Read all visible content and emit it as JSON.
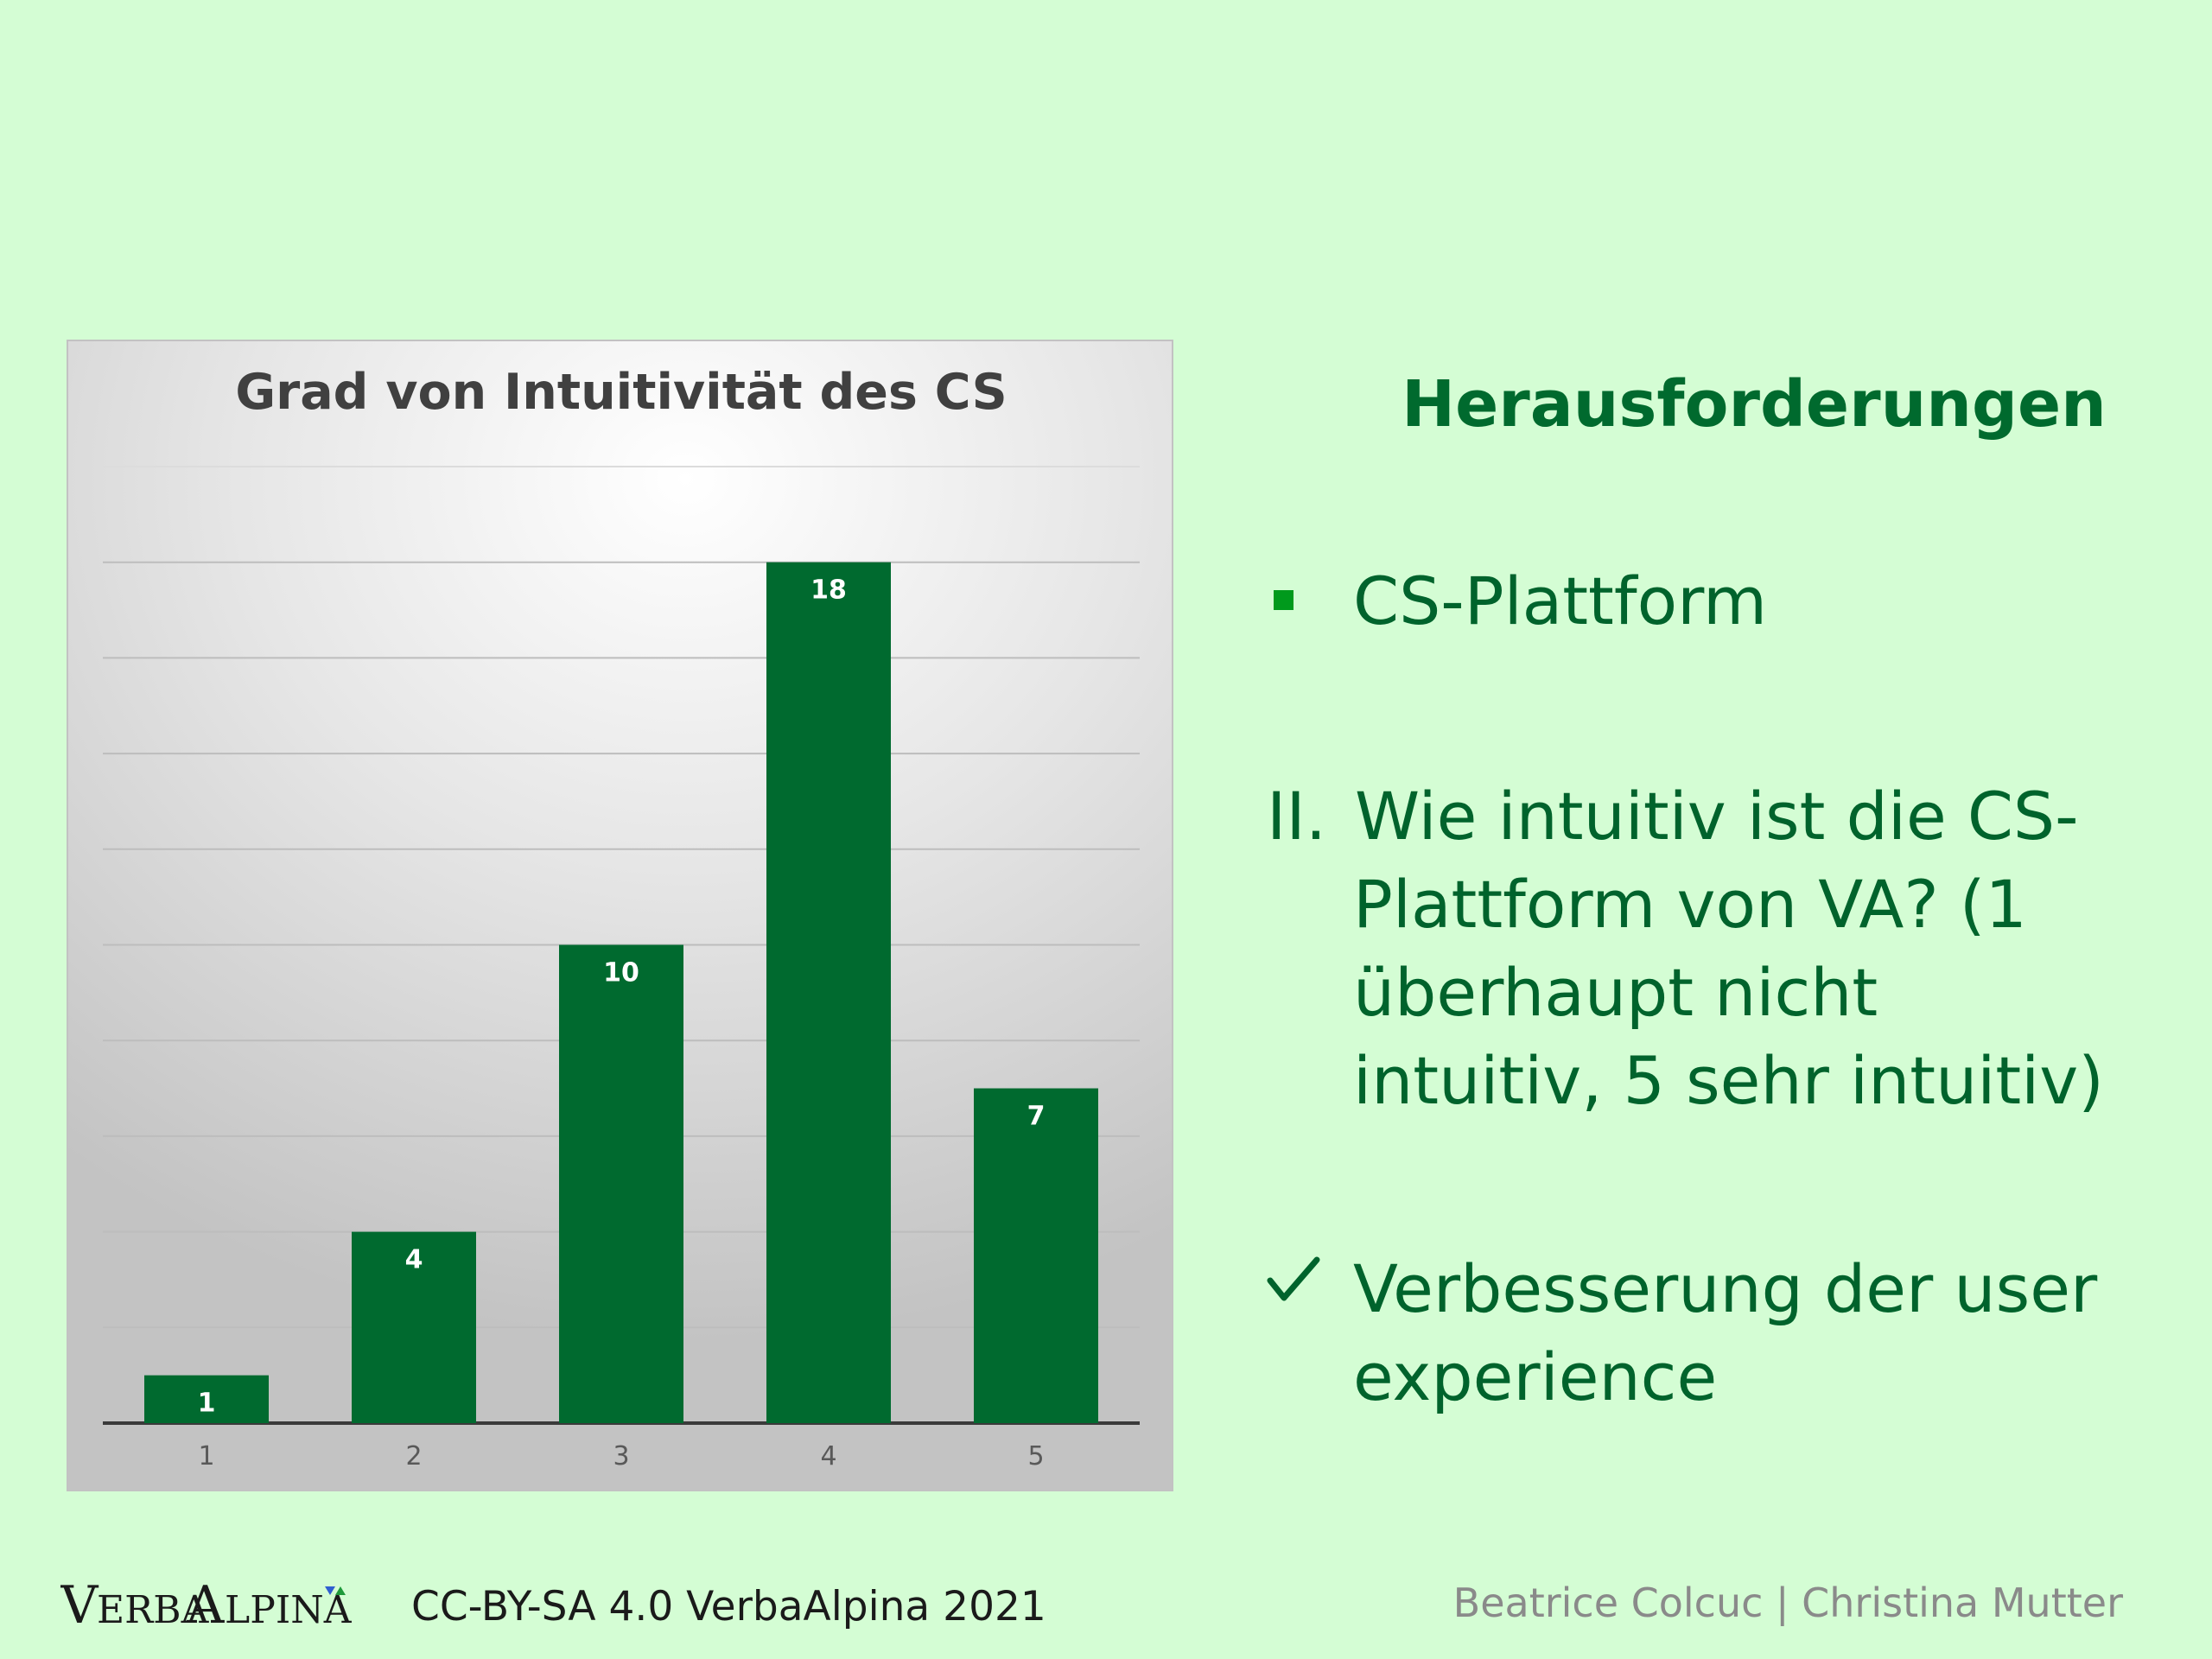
{
  "chart_data": {
    "type": "bar",
    "title": "Grad von Intuitivität des CS",
    "categories": [
      "1",
      "2",
      "3",
      "4",
      "5"
    ],
    "values": [
      1,
      4,
      10,
      18,
      7
    ],
    "xlabel": "",
    "ylabel": "",
    "ylim": [
      0,
      20
    ],
    "grid": true,
    "legend": "none",
    "bar_color": "#006a2f",
    "data_labels": [
      "1",
      "4",
      "10",
      "18",
      "7"
    ]
  },
  "slide": {
    "heading": "Herausforderungen",
    "items": [
      {
        "marker": "square-bullet",
        "text": "CS-Plattform"
      },
      {
        "prefix": "II.",
        "lines": [
          "Wie intuitiv ist die CS-",
          "Plattform von VA? (1",
          "überhaupt nicht",
          "intuitiv, 5 sehr intuitiv)"
        ]
      },
      {
        "marker": "check-icon",
        "lines": [
          "Verbesserung der user",
          "experience"
        ]
      }
    ]
  },
  "footer": {
    "logo_text": "VERBAALPINA",
    "license": "CC-BY-SA 4.0 VerbaAlpina 2021",
    "authors": "Beatrice Colcuc | Christina Mutter"
  },
  "colors": {
    "background": "#d4fdd4",
    "heading": "#006a2e",
    "text": "#00632c",
    "bullet": "#009a1c",
    "bar": "#006a2f"
  }
}
